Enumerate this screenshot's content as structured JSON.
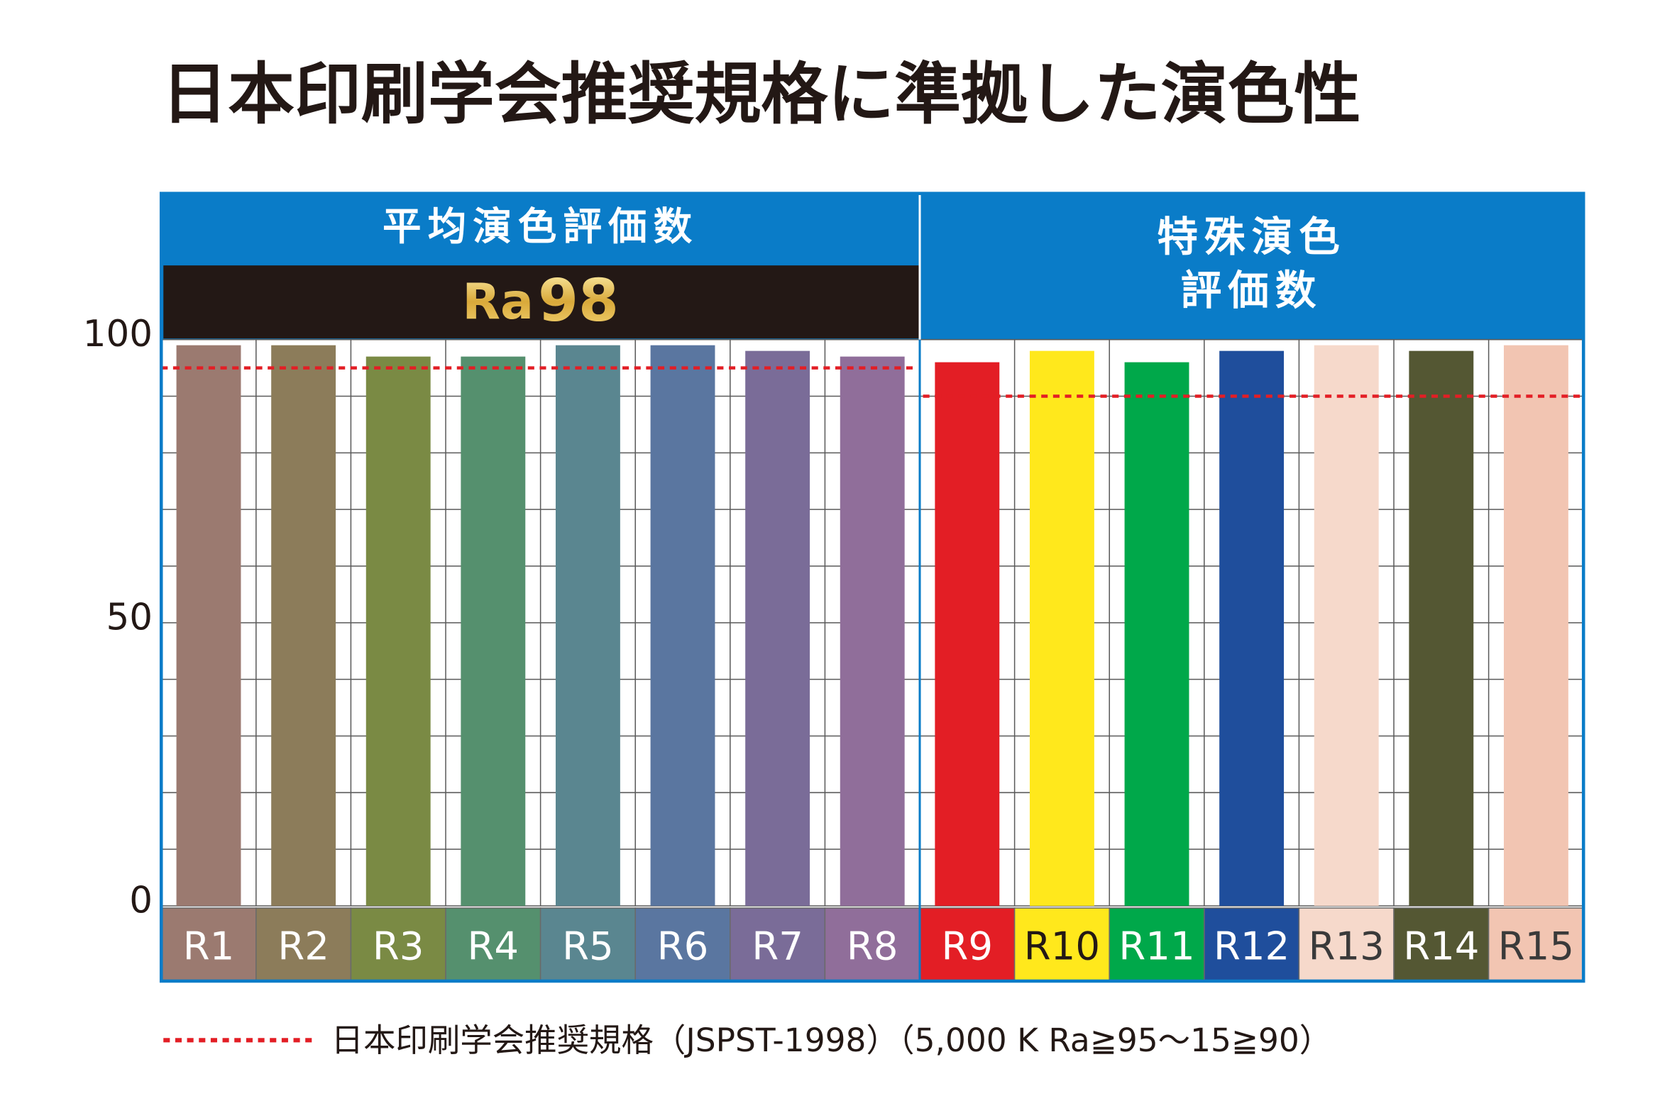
{
  "chart_data": {
    "type": "bar",
    "title": "日本印刷学会推奨規格に準拠した演色性",
    "ylim": [
      0,
      100
    ],
    "yticks": [
      0,
      50,
      100
    ],
    "ygrid": [
      0,
      10,
      20,
      30,
      40,
      50,
      60,
      70,
      80,
      90,
      100
    ],
    "groups": [
      {
        "label_lines": [
          "平均演色評価数"
        ],
        "badge": {
          "label": "Ra",
          "value": 98
        },
        "reference": 95,
        "categories": [
          "R1",
          "R2",
          "R3",
          "R4",
          "R5",
          "R6",
          "R7",
          "R8"
        ],
        "values": [
          99,
          99,
          97,
          97,
          99,
          99,
          98,
          97
        ],
        "colors": [
          "#9b7a70",
          "#8c7c5a",
          "#7a8a44",
          "#55906e",
          "#5a8690",
          "#5a76a0",
          "#7a6c98",
          "#906e9a"
        ],
        "label_colors": [
          "#ffffff",
          "#ffffff",
          "#ffffff",
          "#ffffff",
          "#ffffff",
          "#ffffff",
          "#ffffff",
          "#ffffff"
        ]
      },
      {
        "label_lines": [
          "特殊演色",
          "評価数"
        ],
        "reference": 90,
        "categories": [
          "R9",
          "R10",
          "R11",
          "R12",
          "R13",
          "R14",
          "R15"
        ],
        "values": [
          96,
          98,
          96,
          98,
          99,
          98,
          99
        ],
        "colors": [
          "#e31e25",
          "#ffe81c",
          "#00a84a",
          "#1f4e9c",
          "#f6d9cb",
          "#545733",
          "#f2c5b2"
        ],
        "label_colors": [
          "#ffffff",
          "#231815",
          "#ffffff",
          "#ffffff",
          "#3a3a3a",
          "#ffffff",
          "#3a3a3a"
        ]
      }
    ],
    "reference_color": "#e31e25",
    "legend": "日本印刷学会推奨規格（JSPST-1998）（5,000 K Ra≧95〜15≧90）"
  }
}
